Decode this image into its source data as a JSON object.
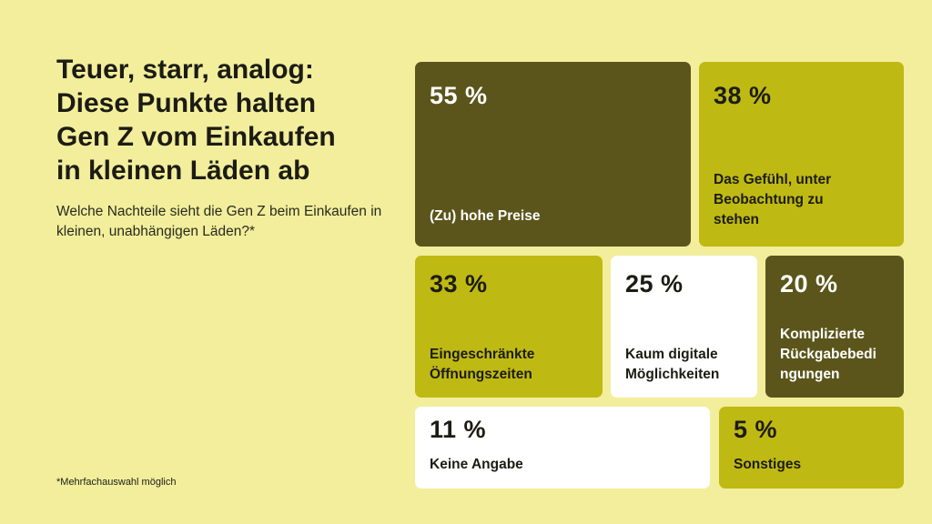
{
  "header": {
    "title_lines": [
      "Teuer, starr, analog:",
      "Diese Punkte halten",
      "Gen Z vom Einkaufen",
      "in kleinen Läden ab"
    ],
    "subtitle": "Welche Nachteile sieht die Gen Z beim Einkaufen in kleinen, unabhängigen Läden?*"
  },
  "footnote": "*Mehrfachauswahl möglich",
  "colors": {
    "background": "#f2ee9c",
    "dark": "#5b551b",
    "lime": "#bfb913",
    "white": "#ffffff"
  },
  "chart_data": {
    "type": "treemap",
    "title": "Teuer, starr, analog: Diese Punkte halten Gen Z vom Einkaufen in kleinen Läden ab",
    "subtitle": "Welche Nachteile sieht die Gen Z beim Einkaufen in kleinen, unabhängigen Läden?*",
    "unit": "%",
    "categories": [
      "(Zu) hohe Preise",
      "Das Gefühl, unter Beobachtung zu stehen",
      "Eingeschränkte Öffnungszeiten",
      "Kaum digitale Möglichkeiten",
      "Komplizierte Rückgabebedingungen",
      "Keine Angabe",
      "Sonstiges"
    ],
    "values": [
      55,
      38,
      33,
      25,
      20,
      11,
      5
    ],
    "tiles": [
      {
        "value_label": "55 %",
        "label": "(Zu) hohe Preise",
        "label_lines": [
          "(Zu) hohe Preise"
        ],
        "color": "dark"
      },
      {
        "value_label": "38 %",
        "label": "Das Gefühl, unter Beobachtung zu stehen",
        "label_lines": [
          "Das Gefühl, unter",
          "Beobachtung zu",
          "stehen"
        ],
        "color": "lime"
      },
      {
        "value_label": "33 %",
        "label": "Eingeschränkte Öffnungszeiten",
        "label_lines": [
          "Eingeschränkte",
          "Öffnungszeiten"
        ],
        "color": "lime"
      },
      {
        "value_label": "25 %",
        "label": "Kaum digitale Möglichkeiten",
        "label_lines": [
          "Kaum digitale",
          "Möglichkeiten"
        ],
        "color": "white"
      },
      {
        "value_label": "20 %",
        "label": "Komplizierte Rückgabebedingungen",
        "label_lines": [
          "Komplizierte",
          "Rückgabebedi",
          "ngungen"
        ],
        "color": "dark"
      },
      {
        "value_label": "11 %",
        "label": "Keine Angabe",
        "label_lines": [
          "Keine Angabe"
        ],
        "color": "white"
      },
      {
        "value_label": "5 %",
        "label": "Sonstiges",
        "label_lines": [
          "Sonstiges"
        ],
        "color": "lime"
      }
    ]
  }
}
